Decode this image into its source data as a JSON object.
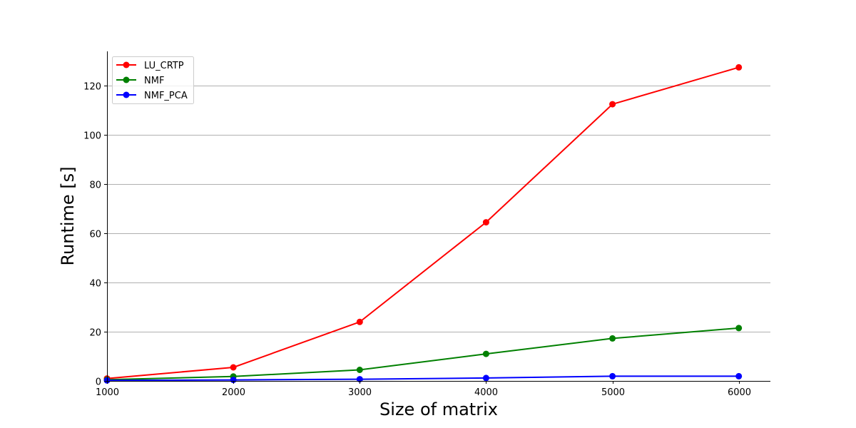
{
  "chart_data": {
    "type": "line",
    "title": "",
    "xlabel": "Size of matrix",
    "ylabel": "Runtime [s]",
    "x": [
      1000,
      2000,
      3000,
      4000,
      5000,
      6000
    ],
    "xlim": [
      1000,
      6250
    ],
    "ylim": [
      0,
      134
    ],
    "xticks": [
      1000,
      2000,
      3000,
      4000,
      5000,
      6000
    ],
    "yticks": [
      0,
      20,
      40,
      60,
      80,
      100,
      120
    ],
    "grid": "y",
    "legend_position": "top-left",
    "series": [
      {
        "name": "LU_CRTP",
        "color": "#ff0000",
        "values": [
          1.0,
          5.5,
          24.0,
          64.5,
          112.5,
          127.5
        ]
      },
      {
        "name": "NMF",
        "color": "#008000",
        "values": [
          0.5,
          1.8,
          4.5,
          11.0,
          17.3,
          21.5
        ]
      },
      {
        "name": "NMF_PCA",
        "color": "#0000ff",
        "values": [
          0.2,
          0.4,
          0.7,
          1.2,
          1.9,
          1.9
        ]
      }
    ]
  }
}
